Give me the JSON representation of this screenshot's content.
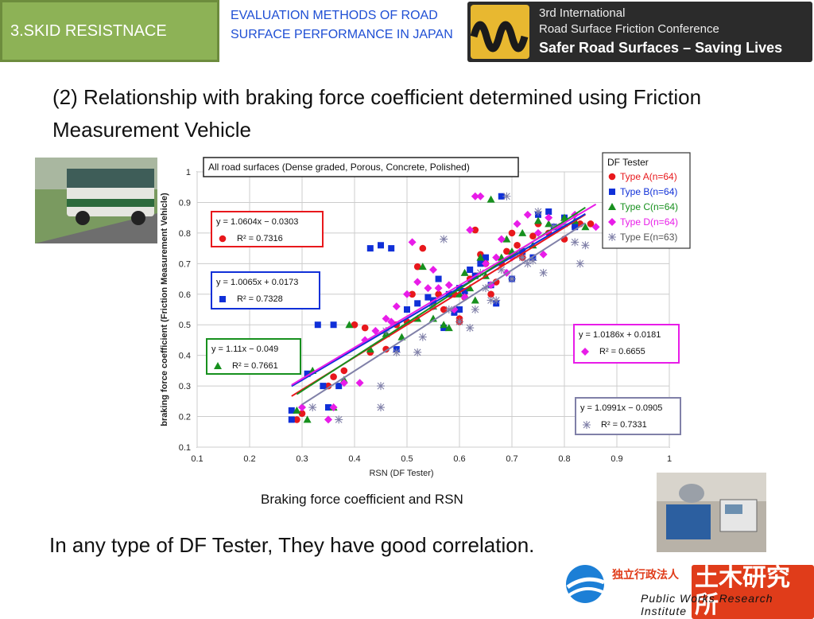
{
  "header": {
    "section": "3.SKID RESISTNACE",
    "eval_title": "EVALUATION METHODS OF ROAD SURFACE PERFORMANCE IN JAPAN",
    "conf_line1": "3rd International",
    "conf_line2": "Road Surface Friction Conference",
    "conf_line3": "Safer Road Surfaces – Saving Lives"
  },
  "heading": "(2) Relationship with braking force coefficient determined using Friction Measurement Vehicle",
  "caption": "Braking force coefficient and RSN",
  "conclusion": "In any type of DF Tester, They have good correlation.",
  "footer": {
    "jp_small": "独立行政法人",
    "jp_big": "土木研究所",
    "en": "Public Works Research Institute"
  },
  "colors": {
    "typeA": "#e8181c",
    "typeB": "#1030d8",
    "typeC": "#17901e",
    "typeD": "#e81ce8",
    "typeE": "#8080a8",
    "grid": "#cccccc"
  },
  "chart_data": {
    "type": "scatter",
    "title": "All road surfaces (Dense graded, Porous, Concrete, Polished)",
    "xlabel": "RSN (DF Tester)",
    "ylabel": "braking force coefficient (Friction Measurement Vehicle)",
    "xlim": [
      0.1,
      1
    ],
    "ylim": [
      0.1,
      1
    ],
    "xticks": [
      "0.1",
      "0.2",
      "0.3",
      "0.4",
      "0.5",
      "0.6",
      "0.7",
      "0.8",
      "0.9",
      "1"
    ],
    "yticks": [
      "0.1",
      "0.2",
      "0.3",
      "0.4",
      "0.5",
      "0.6",
      "0.7",
      "0.8",
      "0.9",
      "1"
    ],
    "grid": true,
    "legend_title": "DF Tester",
    "legend_position": "top-right",
    "series": [
      {
        "name": "Type A(n=64)",
        "marker": "circle",
        "color": "#e8181c",
        "equation": "y = 1.0604x − 0.0303",
        "r2": "R² = 0.7316",
        "fit": [
          1.0604,
          -0.0303
        ],
        "fit_x": [
          0.28,
          0.84
        ],
        "points": [
          [
            0.29,
            0.19
          ],
          [
            0.3,
            0.21
          ],
          [
            0.35,
            0.3
          ],
          [
            0.36,
            0.33
          ],
          [
            0.38,
            0.35
          ],
          [
            0.4,
            0.5
          ],
          [
            0.42,
            0.49
          ],
          [
            0.43,
            0.41
          ],
          [
            0.46,
            0.42
          ],
          [
            0.48,
            0.5
          ],
          [
            0.5,
            0.51
          ],
          [
            0.51,
            0.6
          ],
          [
            0.52,
            0.69
          ],
          [
            0.53,
            0.75
          ],
          [
            0.55,
            0.57
          ],
          [
            0.57,
            0.55
          ],
          [
            0.59,
            0.6
          ],
          [
            0.6,
            0.52
          ],
          [
            0.6,
            0.51
          ],
          [
            0.61,
            0.59
          ],
          [
            0.62,
            0.65
          ],
          [
            0.63,
            0.66
          ],
          [
            0.64,
            0.73
          ],
          [
            0.65,
            0.7
          ],
          [
            0.66,
            0.6
          ],
          [
            0.67,
            0.64
          ],
          [
            0.68,
            0.7
          ],
          [
            0.69,
            0.74
          ],
          [
            0.7,
            0.8
          ],
          [
            0.71,
            0.76
          ],
          [
            0.72,
            0.72
          ],
          [
            0.74,
            0.79
          ],
          [
            0.75,
            0.83
          ],
          [
            0.77,
            0.8
          ],
          [
            0.8,
            0.78
          ],
          [
            0.82,
            0.82
          ],
          [
            0.83,
            0.83
          ],
          [
            0.85,
            0.83
          ],
          [
            0.63,
            0.81
          ],
          [
            0.56,
            0.6
          ]
        ]
      },
      {
        "name": "Type B(n=64)",
        "marker": "square",
        "color": "#1030d8",
        "equation": "y = 1.0065x + 0.0173",
        "r2": "R² = 0.7328",
        "fit": [
          1.0065,
          0.0173
        ],
        "fit_x": [
          0.28,
          0.84
        ],
        "points": [
          [
            0.28,
            0.19
          ],
          [
            0.28,
            0.22
          ],
          [
            0.31,
            0.34
          ],
          [
            0.33,
            0.5
          ],
          [
            0.34,
            0.3
          ],
          [
            0.35,
            0.23
          ],
          [
            0.36,
            0.5
          ],
          [
            0.37,
            0.3
          ],
          [
            0.43,
            0.75
          ],
          [
            0.45,
            0.76
          ],
          [
            0.47,
            0.75
          ],
          [
            0.48,
            0.42
          ],
          [
            0.5,
            0.55
          ],
          [
            0.52,
            0.57
          ],
          [
            0.54,
            0.59
          ],
          [
            0.55,
            0.58
          ],
          [
            0.57,
            0.49
          ],
          [
            0.58,
            0.6
          ],
          [
            0.59,
            0.54
          ],
          [
            0.6,
            0.62
          ],
          [
            0.61,
            0.61
          ],
          [
            0.62,
            0.68
          ],
          [
            0.63,
            0.66
          ],
          [
            0.64,
            0.7
          ],
          [
            0.65,
            0.72
          ],
          [
            0.66,
            0.63
          ],
          [
            0.67,
            0.57
          ],
          [
            0.68,
            0.92
          ],
          [
            0.7,
            0.65
          ],
          [
            0.72,
            0.74
          ],
          [
            0.74,
            0.72
          ],
          [
            0.75,
            0.86
          ],
          [
            0.77,
            0.87
          ],
          [
            0.78,
            0.82
          ],
          [
            0.8,
            0.85
          ],
          [
            0.82,
            0.82
          ],
          [
            0.56,
            0.65
          ],
          [
            0.6,
            0.55
          ]
        ]
      },
      {
        "name": "Type C(n=64)",
        "marker": "triangle",
        "color": "#17901e",
        "equation": "y = 1.11x − 0.049",
        "r2": "R² = 0.7661",
        "fit": [
          1.11,
          -0.049
        ],
        "fit_x": [
          0.29,
          0.84
        ],
        "points": [
          [
            0.29,
            0.22
          ],
          [
            0.31,
            0.19
          ],
          [
            0.32,
            0.35
          ],
          [
            0.36,
            0.23
          ],
          [
            0.38,
            0.32
          ],
          [
            0.39,
            0.5
          ],
          [
            0.43,
            0.42
          ],
          [
            0.46,
            0.47
          ],
          [
            0.49,
            0.46
          ],
          [
            0.52,
            0.52
          ],
          [
            0.53,
            0.69
          ],
          [
            0.55,
            0.56
          ],
          [
            0.57,
            0.5
          ],
          [
            0.58,
            0.49
          ],
          [
            0.6,
            0.6
          ],
          [
            0.62,
            0.62
          ],
          [
            0.63,
            0.58
          ],
          [
            0.64,
            0.72
          ],
          [
            0.65,
            0.66
          ],
          [
            0.66,
            0.91
          ],
          [
            0.68,
            0.72
          ],
          [
            0.69,
            0.78
          ],
          [
            0.7,
            0.74
          ],
          [
            0.72,
            0.8
          ],
          [
            0.74,
            0.76
          ],
          [
            0.75,
            0.84
          ],
          [
            0.77,
            0.83
          ],
          [
            0.8,
            0.85
          ],
          [
            0.82,
            0.84
          ],
          [
            0.84,
            0.82
          ],
          [
            0.55,
            0.52
          ],
          [
            0.61,
            0.67
          ]
        ]
      },
      {
        "name": "Type D(n=64)",
        "marker": "diamond",
        "color": "#e81ce8",
        "equation": "y = 1.0186x + 0.0181",
        "r2": "R² = 0.6655",
        "fit": [
          1.0186,
          0.0181
        ],
        "fit_x": [
          0.28,
          0.86
        ],
        "points": [
          [
            0.3,
            0.23
          ],
          [
            0.35,
            0.19
          ],
          [
            0.36,
            0.23
          ],
          [
            0.38,
            0.31
          ],
          [
            0.41,
            0.31
          ],
          [
            0.42,
            0.45
          ],
          [
            0.44,
            0.48
          ],
          [
            0.46,
            0.52
          ],
          [
            0.47,
            0.51
          ],
          [
            0.48,
            0.56
          ],
          [
            0.5,
            0.6
          ],
          [
            0.51,
            0.77
          ],
          [
            0.52,
            0.64
          ],
          [
            0.54,
            0.62
          ],
          [
            0.55,
            0.68
          ],
          [
            0.56,
            0.62
          ],
          [
            0.58,
            0.63
          ],
          [
            0.59,
            0.55
          ],
          [
            0.61,
            0.59
          ],
          [
            0.62,
            0.81
          ],
          [
            0.63,
            0.92
          ],
          [
            0.64,
            0.92
          ],
          [
            0.65,
            0.7
          ],
          [
            0.66,
            0.63
          ],
          [
            0.67,
            0.72
          ],
          [
            0.68,
            0.78
          ],
          [
            0.7,
            0.72
          ],
          [
            0.71,
            0.83
          ],
          [
            0.73,
            0.86
          ],
          [
            0.75,
            0.8
          ],
          [
            0.77,
            0.85
          ],
          [
            0.79,
            0.82
          ],
          [
            0.82,
            0.86
          ],
          [
            0.86,
            0.82
          ],
          [
            0.76,
            0.73
          ],
          [
            0.69,
            0.67
          ]
        ]
      },
      {
        "name": "Type E(n=63)",
        "marker": "star",
        "color": "#8080a8",
        "equation": "y = 1.0991x − 0.0905",
        "r2": "R² = 0.7331",
        "fit": [
          1.0991,
          -0.0905
        ],
        "fit_x": [
          0.3,
          0.84
        ],
        "points": [
          [
            0.32,
            0.23
          ],
          [
            0.37,
            0.19
          ],
          [
            0.45,
            0.23
          ],
          [
            0.45,
            0.3
          ],
          [
            0.46,
            0.48
          ],
          [
            0.48,
            0.41
          ],
          [
            0.52,
            0.41
          ],
          [
            0.53,
            0.46
          ],
          [
            0.55,
            0.56
          ],
          [
            0.57,
            0.78
          ],
          [
            0.58,
            0.55
          ],
          [
            0.6,
            0.51
          ],
          [
            0.62,
            0.49
          ],
          [
            0.63,
            0.55
          ],
          [
            0.64,
            0.67
          ],
          [
            0.66,
            0.58
          ],
          [
            0.67,
            0.58
          ],
          [
            0.68,
            0.68
          ],
          [
            0.69,
            0.92
          ],
          [
            0.7,
            0.65
          ],
          [
            0.72,
            0.72
          ],
          [
            0.73,
            0.7
          ],
          [
            0.74,
            0.71
          ],
          [
            0.75,
            0.87
          ],
          [
            0.76,
            0.67
          ],
          [
            0.78,
            0.82
          ],
          [
            0.8,
            0.83
          ],
          [
            0.82,
            0.77
          ],
          [
            0.83,
            0.7
          ],
          [
            0.84,
            0.76
          ],
          [
            0.71,
            0.73
          ],
          [
            0.65,
            0.62
          ]
        ]
      }
    ]
  }
}
